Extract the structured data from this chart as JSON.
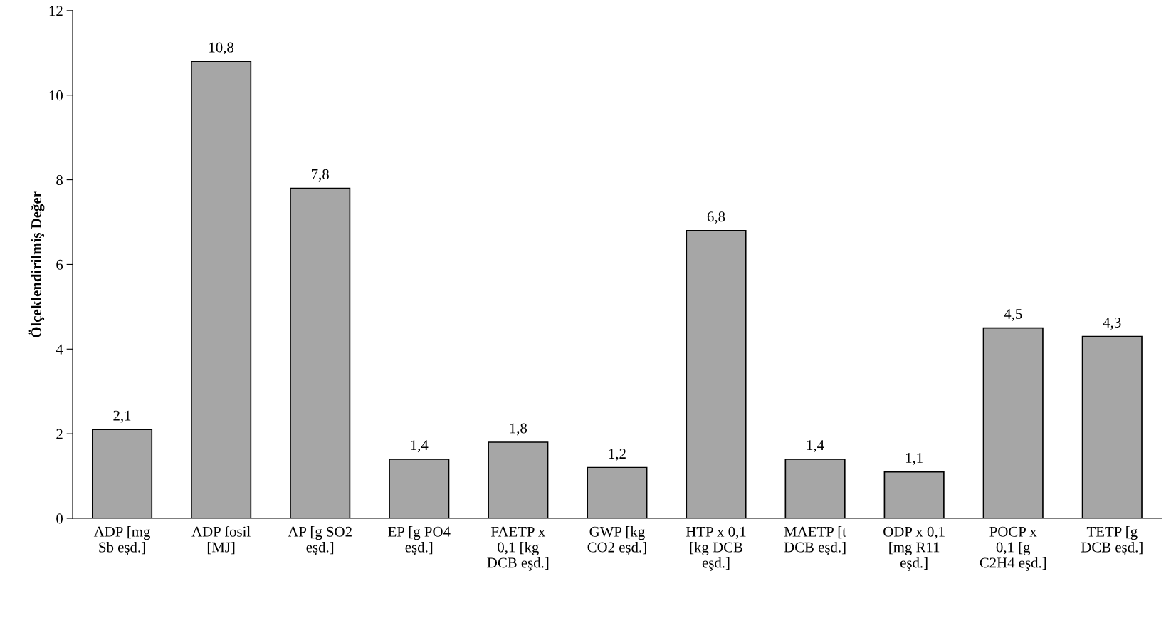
{
  "chart_data": {
    "type": "bar",
    "ylabel": "Ölçeklendirilmiş Değer",
    "categories": [
      "ADP [mg\nSb eşd.]",
      "ADP fosil\n[MJ]",
      "AP [g SO2\neşd.]",
      "EP [g PO4\neşd.]",
      "FAETP x\n0,1 [kg\nDCB eşd.]",
      "GWP [kg\nCO2 eşd.]",
      "HTP x 0,1\n[kg DCB\neşd.]",
      "MAETP [t\nDCB eşd.]",
      "ODP x 0,1\n[mg R11\neşd.]",
      "POCP x\n0,1 [g\nC2H4 eşd.]",
      "TETP [g\nDCB eşd.]"
    ],
    "values": [
      2.1,
      10.8,
      7.8,
      1.4,
      1.8,
      1.2,
      6.8,
      1.4,
      1.1,
      4.5,
      4.3
    ],
    "value_labels": [
      "2,1",
      "10,8",
      "7,8",
      "1,4",
      "1,8",
      "1,2",
      "6,8",
      "1,4",
      "1,1",
      "4,5",
      "4,3"
    ],
    "color": "#a6a6a6",
    "ylim": [
      0,
      12
    ],
    "yticks": [
      0,
      2,
      4,
      6,
      8,
      10,
      12
    ],
    "grid": false,
    "legend": false
  }
}
